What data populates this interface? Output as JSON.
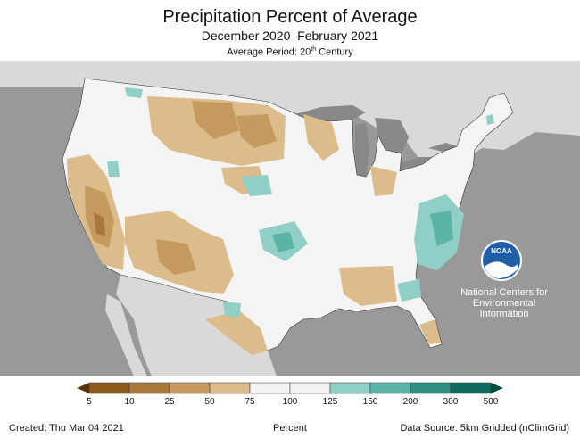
{
  "title": "Precipitation Percent of Average",
  "subtitle": "December 2020–February 2021",
  "average_period": {
    "prefix": "Average Period: 20",
    "superscript": "th",
    "suffix": " Century"
  },
  "agency": {
    "logo_text": "NOAA",
    "name_lines": [
      "National Centers for",
      "Environmental",
      "Information"
    ]
  },
  "legend": {
    "ticks": [
      "5",
      "10",
      "25",
      "50",
      "75",
      "100",
      "125",
      "150",
      "200",
      "300",
      "500"
    ],
    "colors": [
      "#8c5a1c",
      "#a8783a",
      "#c49a5e",
      "#dcbc8a",
      "#f2f2f2",
      "#f2f2f2",
      "#8fcfc5",
      "#5bb4a6",
      "#2f8f82",
      "#0f6b5f"
    ],
    "unit": "Percent"
  },
  "footer": {
    "created": "Created: Thu Mar 04 2021",
    "source": "Data Source: 5km Gridded (nClimGrid)"
  },
  "palette": {
    "ocean": "#999999",
    "outside_land": "#d9d9d9",
    "great_lakes": "#888888",
    "us_base": "#f4f4f4",
    "dry_light": "#dcbc8a",
    "dry_mid": "#c49a5e",
    "dry_dark": "#a8783a",
    "wet_light": "#8fcfc5",
    "wet_mid": "#5bb4a6"
  }
}
